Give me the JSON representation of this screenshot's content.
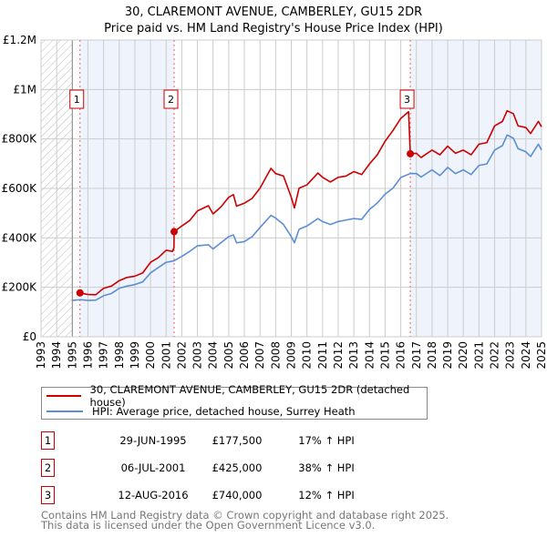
{
  "chart_data": {
    "type": "line",
    "title": "30, CLAREMONT AVENUE, CAMBERLEY, GU15 2DR",
    "subtitle": "Price paid vs. HM Land Registry's House Price Index (HPI)",
    "xlim": [
      1993,
      2025
    ],
    "ylim": [
      0,
      1200000
    ],
    "x_ticks": [
      "1993",
      "1994",
      "1995",
      "1996",
      "1997",
      "1998",
      "1999",
      "2000",
      "2001",
      "2002",
      "2003",
      "2004",
      "2005",
      "2006",
      "2007",
      "2008",
      "2009",
      "2010",
      "2011",
      "2012",
      "2013",
      "2014",
      "2015",
      "2016",
      "2017",
      "2018",
      "2019",
      "2020",
      "2021",
      "2022",
      "2023",
      "2024",
      "2025"
    ],
    "y_ticks": [
      {
        "v": 0,
        "label": "£0"
      },
      {
        "v": 200000,
        "label": "£200K"
      },
      {
        "v": 400000,
        "label": "£400K"
      },
      {
        "v": 600000,
        "label": "£600K"
      },
      {
        "v": 800000,
        "label": "£800K"
      },
      {
        "v": 1000000,
        "label": "£1M"
      },
      {
        "v": 1200000,
        "label": "£1.2M"
      }
    ],
    "grid": true,
    "hatched_range": [
      1993,
      1995
    ],
    "shaded_ranges": [
      [
        1995.49,
        2001.51
      ],
      [
        2016.61,
        2025
      ]
    ],
    "series": [
      {
        "name": "30, CLAREMONT AVENUE, CAMBERLEY, GU15 2DR (detached house)",
        "color": "#cc0000",
        "points": [
          [
            1995.49,
            177500
          ],
          [
            1996,
            171000
          ],
          [
            1996.5,
            170000
          ],
          [
            1997,
            196000
          ],
          [
            1997.5,
            205000
          ],
          [
            1998,
            227000
          ],
          [
            1998.5,
            240000
          ],
          [
            1999,
            245000
          ],
          [
            1999.5,
            258000
          ],
          [
            2000,
            301000
          ],
          [
            2000.5,
            320000
          ],
          [
            2001,
            350000
          ],
          [
            2001.4,
            345000
          ],
          [
            2001.5,
            360000
          ],
          [
            2001.51,
            425000
          ],
          [
            2002,
            448000
          ],
          [
            2002.5,
            470000
          ],
          [
            2003,
            509000
          ],
          [
            2003.7,
            530000
          ],
          [
            2004,
            497000
          ],
          [
            2004.5,
            525000
          ],
          [
            2005,
            564000
          ],
          [
            2005.3,
            575000
          ],
          [
            2005.5,
            528000
          ],
          [
            2006,
            540000
          ],
          [
            2006.5,
            560000
          ],
          [
            2007,
            601000
          ],
          [
            2007.7,
            681000
          ],
          [
            2008,
            660000
          ],
          [
            2008.5,
            650000
          ],
          [
            2009,
            564000
          ],
          [
            2009.2,
            521000
          ],
          [
            2009.5,
            601000
          ],
          [
            2010,
            614000
          ],
          [
            2010.7,
            662000
          ],
          [
            2011,
            645000
          ],
          [
            2011.5,
            626000
          ],
          [
            2012,
            645000
          ],
          [
            2012.5,
            650000
          ],
          [
            2013,
            668000
          ],
          [
            2013.5,
            656000
          ],
          [
            2014,
            699000
          ],
          [
            2014.5,
            736000
          ],
          [
            2015,
            791000
          ],
          [
            2015.5,
            834000
          ],
          [
            2016,
            883000
          ],
          [
            2016.5,
            910000
          ],
          [
            2016.61,
            740000
          ],
          [
            2017,
            742000
          ],
          [
            2017.3,
            725000
          ],
          [
            2018,
            755000
          ],
          [
            2018.5,
            736000
          ],
          [
            2019,
            771000
          ],
          [
            2019.5,
            742000
          ],
          [
            2020,
            755000
          ],
          [
            2020.5,
            736000
          ],
          [
            2021,
            779000
          ],
          [
            2021.5,
            785000
          ],
          [
            2022,
            853000
          ],
          [
            2022.5,
            871000
          ],
          [
            2022.8,
            914000
          ],
          [
            2023.2,
            902000
          ],
          [
            2023.5,
            853000
          ],
          [
            2024,
            846000
          ],
          [
            2024.3,
            822000
          ],
          [
            2024.8,
            871000
          ],
          [
            2025,
            849000
          ]
        ]
      },
      {
        "name": "HPI: Average price, detached house, Surrey Heath",
        "color": "#5b8fd4",
        "points": [
          [
            1995,
            147000
          ],
          [
            1995.5,
            150000
          ],
          [
            1996,
            147000
          ],
          [
            1996.5,
            148000
          ],
          [
            1997,
            166000
          ],
          [
            1997.5,
            175000
          ],
          [
            1998,
            196000
          ],
          [
            1998.5,
            205000
          ],
          [
            1999,
            211000
          ],
          [
            1999.5,
            222000
          ],
          [
            2000,
            258000
          ],
          [
            2000.5,
            280000
          ],
          [
            2001,
            301000
          ],
          [
            2001.5,
            307000
          ],
          [
            2002,
            325000
          ],
          [
            2002.5,
            345000
          ],
          [
            2003,
            368000
          ],
          [
            2003.7,
            372000
          ],
          [
            2004,
            355000
          ],
          [
            2004.5,
            380000
          ],
          [
            2005,
            405000
          ],
          [
            2005.3,
            412000
          ],
          [
            2005.5,
            380000
          ],
          [
            2006,
            385000
          ],
          [
            2006.5,
            405000
          ],
          [
            2007,
            442000
          ],
          [
            2007.7,
            491000
          ],
          [
            2008,
            480000
          ],
          [
            2008.5,
            454000
          ],
          [
            2009,
            405000
          ],
          [
            2009.2,
            380000
          ],
          [
            2009.5,
            435000
          ],
          [
            2010,
            448000
          ],
          [
            2010.7,
            478000
          ],
          [
            2011,
            466000
          ],
          [
            2011.5,
            454000
          ],
          [
            2012,
            466000
          ],
          [
            2012.5,
            472000
          ],
          [
            2013,
            478000
          ],
          [
            2013.5,
            475000
          ],
          [
            2014,
            515000
          ],
          [
            2014.5,
            541000
          ],
          [
            2015,
            577000
          ],
          [
            2015.5,
            601000
          ],
          [
            2016,
            644000
          ],
          [
            2016.6,
            660000
          ],
          [
            2017,
            660000
          ],
          [
            2017.3,
            646000
          ],
          [
            2018,
            675000
          ],
          [
            2018.5,
            652000
          ],
          [
            2019,
            685000
          ],
          [
            2019.5,
            660000
          ],
          [
            2020,
            675000
          ],
          [
            2020.5,
            656000
          ],
          [
            2021,
            693000
          ],
          [
            2021.5,
            699000
          ],
          [
            2022,
            755000
          ],
          [
            2022.5,
            773000
          ],
          [
            2022.8,
            816000
          ],
          [
            2023.2,
            803000
          ],
          [
            2023.5,
            761000
          ],
          [
            2024,
            748000
          ],
          [
            2024.3,
            729000
          ],
          [
            2024.8,
            779000
          ],
          [
            2025,
            755000
          ]
        ]
      }
    ],
    "sales": [
      {
        "label": "1",
        "x": 1995.49,
        "price": 177500,
        "date": "29-JUN-1995",
        "price_label": "£177,500",
        "hpi_label": "17% ↑ HPI"
      },
      {
        "label": "2",
        "x": 2001.51,
        "price": 425000,
        "date": "06-JUL-2001",
        "price_label": "£425,000",
        "hpi_label": "38% ↑ HPI"
      },
      {
        "label": "3",
        "x": 2016.61,
        "price": 740000,
        "date": "12-AUG-2016",
        "price_label": "£740,000",
        "hpi_label": "12% ↑ HPI"
      }
    ],
    "legend_placement": "below"
  },
  "footer": {
    "line1": "Contains HM Land Registry data © Crown copyright and database right 2025.",
    "line2": "This data is licensed under the Open Government Licence v3.0."
  }
}
